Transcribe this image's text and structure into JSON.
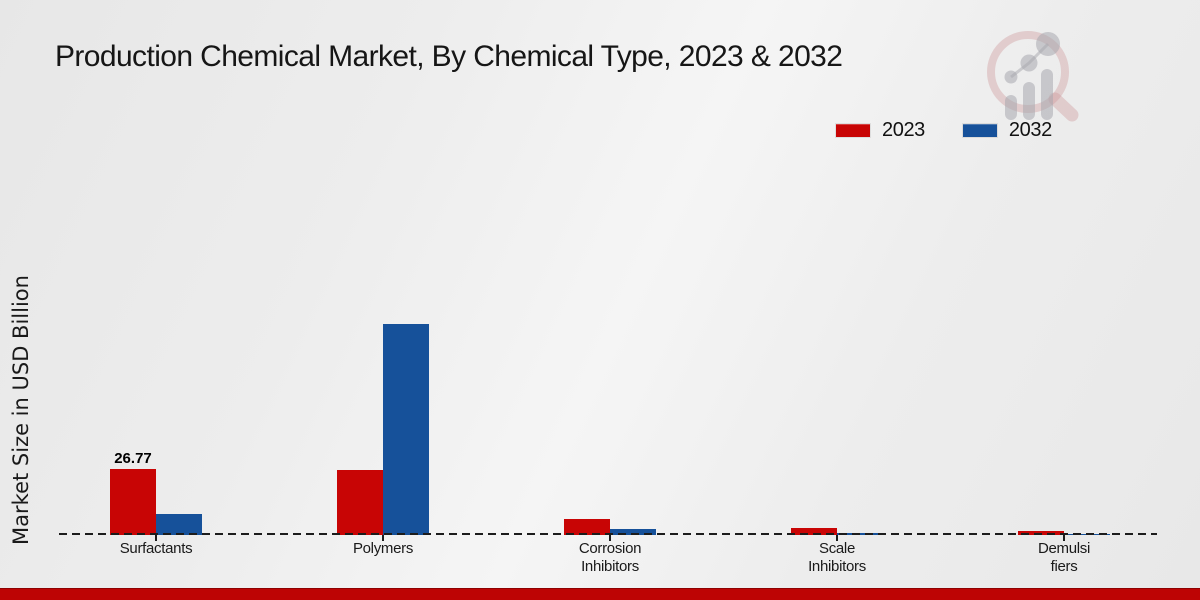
{
  "header": {
    "title": "Production Chemical Market, By Chemical Type, 2023 & 2032"
  },
  "y_axis": {
    "label": "Market Size in USD Billion"
  },
  "colors": {
    "series_2023": "#c80505",
    "series_2032": "#16519a",
    "footer_band": "#bd0404",
    "baseline": "#1c1c1c",
    "watermark_pink": "rgba(205,150,152,0.38)",
    "watermark_gray": "rgba(168,168,174,0.55)"
  },
  "icons": {
    "logo": "magnifier-bar-chart-watermark-icon"
  },
  "chart_data": {
    "type": "bar",
    "title": "Production Chemical Market, By Chemical Type, 2023 & 2032",
    "xlabel": "",
    "ylabel": "Market Size in USD Billion",
    "categories": [
      "Surfactants",
      "Polymers",
      "Corrosion Inhibitors",
      "Scale Inhibitors",
      "Demulsifiers"
    ],
    "category_label_lines": [
      [
        "Surfactants"
      ],
      [
        "Polymers"
      ],
      [
        "Corrosion",
        "Inhibitors"
      ],
      [
        "Scale",
        "Inhibitors"
      ],
      [
        "Demulsi",
        "fiers"
      ]
    ],
    "series": [
      {
        "name": "2023",
        "color": "#c80505",
        "values": [
          26.77,
          26.4,
          6.5,
          2.9,
          1.6
        ]
      },
      {
        "name": "2032",
        "color": "#16519a",
        "values": [
          8.5,
          85.6,
          2.4,
          1.0,
          0.5
        ]
      }
    ],
    "annotations": [
      {
        "category_index": 0,
        "series_index": 0,
        "text": "26.77"
      }
    ],
    "ylim": [
      0,
      90
    ],
    "grid": false,
    "legend_position": "top-right",
    "baseline_style": "dashed"
  }
}
